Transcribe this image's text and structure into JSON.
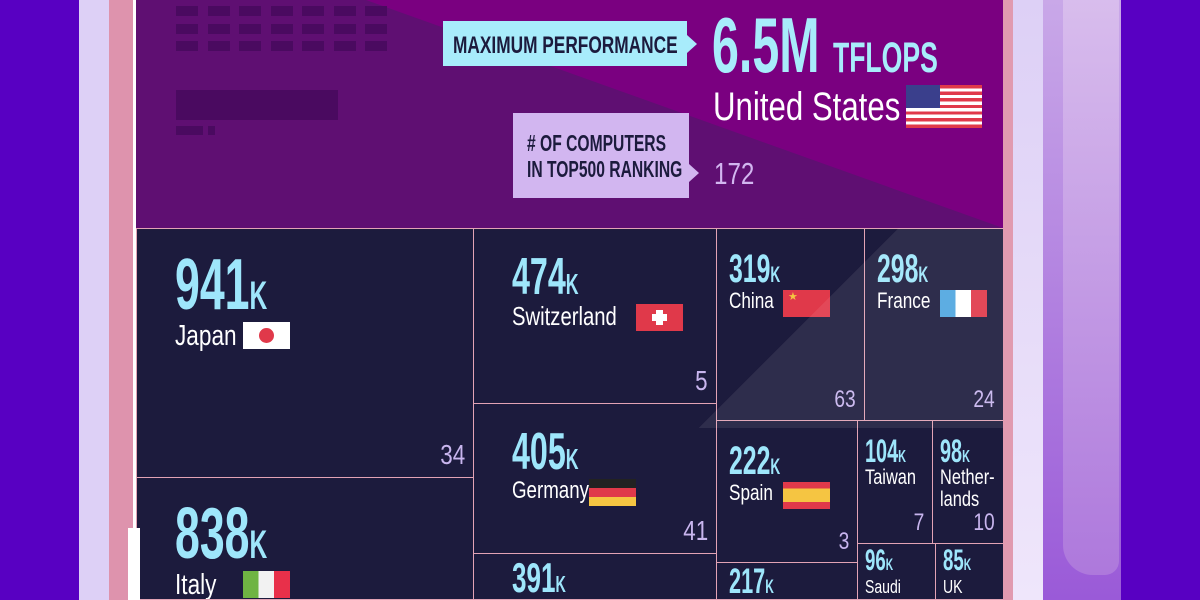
{
  "header": {
    "max_label": "MAXIMUM PERFORMANCE",
    "top_value": "6.5M",
    "top_unit": "TFLOPS",
    "top_country": "United States",
    "computers_label_1": "# OF COMPUTERS",
    "computers_label_2": "IN TOP500 RANKING",
    "top_count": "172"
  },
  "colors": {
    "value": "#9ee6fb",
    "cell": "#1c1b3d",
    "border": "#e2a3b5",
    "top": "#7a0080",
    "background": "#5800c2"
  },
  "chart_data": {
    "type": "treemap",
    "metric": "Maximum performance (TFLOPS)",
    "secondary_metric": "# of computers in TOP500 ranking",
    "items": [
      {
        "country": "United States",
        "value": "6.5M",
        "num": 6500000,
        "count": "172"
      },
      {
        "country": "Japan",
        "value": "941",
        "unit": "K",
        "num": 941000,
        "count": "34"
      },
      {
        "country": "Italy",
        "value": "838",
        "unit": "K",
        "num": 838000,
        "count": ""
      },
      {
        "country": "Switzerland",
        "value": "474",
        "unit": "K",
        "num": 474000,
        "count": "5"
      },
      {
        "country": "Germany",
        "value": "405",
        "unit": "K",
        "num": 405000,
        "count": "41"
      },
      {
        "country": "",
        "value": "391",
        "unit": "K",
        "num": 391000,
        "count": ""
      },
      {
        "country": "China",
        "value": "319",
        "unit": "K",
        "num": 319000,
        "count": "63"
      },
      {
        "country": "France",
        "value": "298",
        "unit": "K",
        "num": 298000,
        "count": "24"
      },
      {
        "country": "Spain",
        "value": "222",
        "unit": "K",
        "num": 222000,
        "count": "3"
      },
      {
        "country": "",
        "value": "217",
        "unit": "K",
        "num": 217000,
        "count": ""
      },
      {
        "country": "Taiwan",
        "value": "104",
        "unit": "K",
        "num": 104000,
        "count": "7"
      },
      {
        "country": "Nether-\nlands",
        "value": "98",
        "unit": "K",
        "num": 98000,
        "count": "10"
      },
      {
        "country": "Saudi",
        "value": "96",
        "unit": "K",
        "num": 96000,
        "count": ""
      },
      {
        "country": "UK",
        "value": "85",
        "unit": "K",
        "num": 85000,
        "count": ""
      }
    ]
  }
}
